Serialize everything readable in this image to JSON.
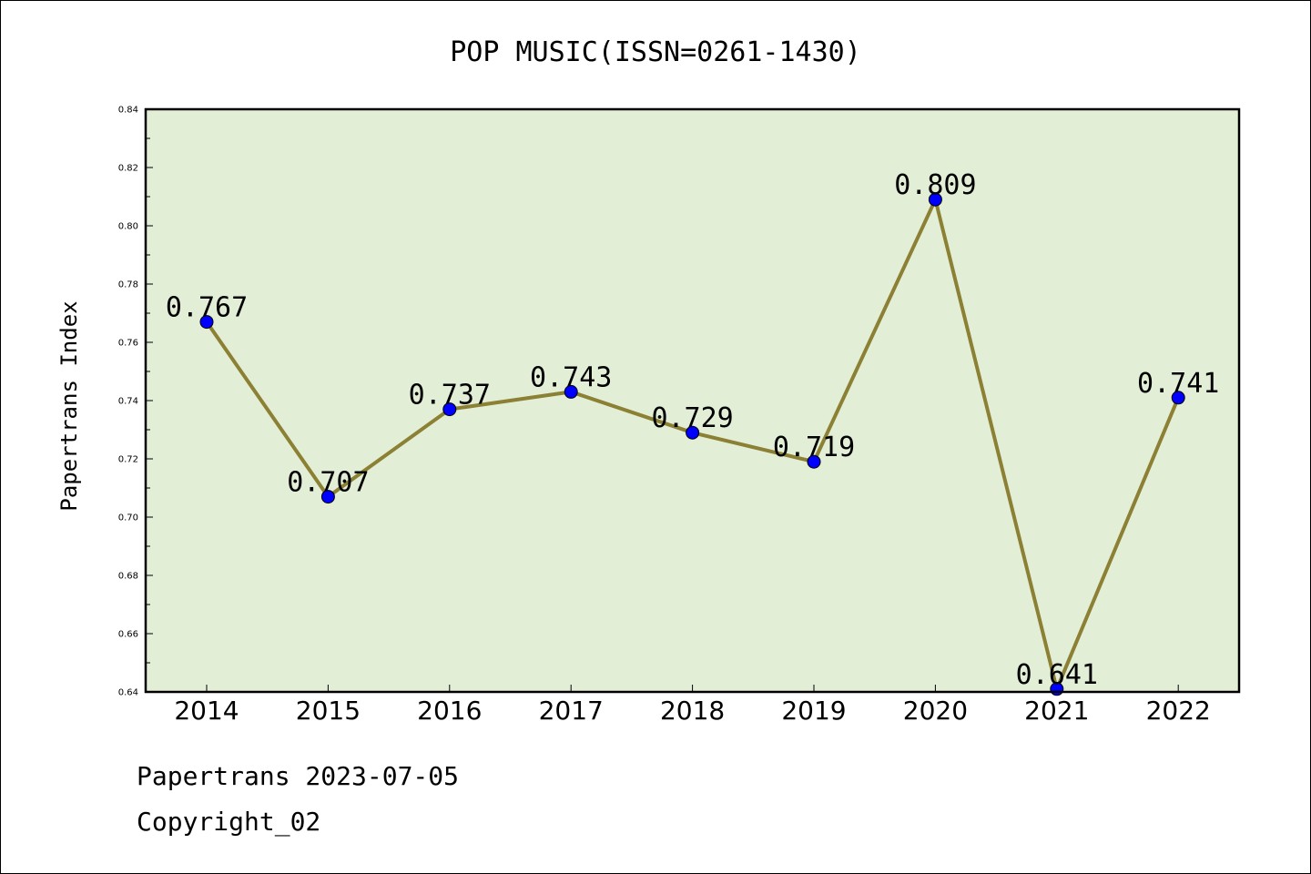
{
  "chart_data": {
    "type": "line",
    "title": "POP MUSIC(ISSN=0261-1430)",
    "ylabel": "Papertrans Index",
    "xlabel": "",
    "ylim": [
      0.64,
      0.84
    ],
    "yticks": [
      "0.64",
      "0.66",
      "0.68",
      "0.70",
      "0.72",
      "0.74",
      "0.76",
      "0.78",
      "0.80",
      "0.82",
      "0.84"
    ],
    "categories": [
      "2014",
      "2015",
      "2016",
      "2017",
      "2018",
      "2019",
      "2020",
      "2021",
      "2022"
    ],
    "values": [
      0.767,
      0.707,
      0.737,
      0.743,
      0.729,
      0.719,
      0.809,
      0.641,
      0.741
    ],
    "data_labels": [
      "0.767",
      "0.707",
      "0.737",
      "0.743",
      "0.729",
      "0.719",
      "0.809",
      "0.641",
      "0.741"
    ],
    "grid": false,
    "legend": "none",
    "colors": {
      "plot_background": "#e2efd6",
      "line": "#8b8034",
      "marker": "#0000ff"
    }
  },
  "footer": {
    "date_line": "Papertrans 2023-07-05",
    "copyright": "Copyright_02"
  }
}
